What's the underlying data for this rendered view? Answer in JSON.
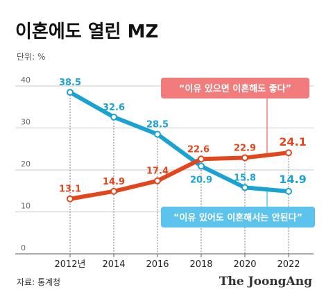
{
  "title": "이혼에도 열린 MZ",
  "unit_label": "단위: %",
  "source": "자료: 통계청",
  "logo": "The JoongAng",
  "colors": {
    "red": "#e2461c",
    "blue": "#1aa3d2",
    "callout_red": "#f27b7b",
    "callout_blue": "#5cc3ec"
  },
  "chart_data": {
    "type": "line",
    "categories": [
      "2012년",
      "2014",
      "2016",
      "2018",
      "2020",
      "2022"
    ],
    "ylim": [
      0,
      40
    ],
    "yticks": [
      0,
      10,
      20,
      30,
      40
    ],
    "grid": true,
    "series": [
      {
        "name": "“이유 있으면 이혼해도 좋다”",
        "color": "#e2461c",
        "values": [
          13.1,
          14.9,
          17.4,
          22.6,
          22.9,
          24.1
        ],
        "labels": [
          "13.1",
          "14.9",
          "17.4",
          "22.6",
          "22.9",
          "24.1"
        ]
      },
      {
        "name": "“이유 있어도 이혼해서는 안된다”",
        "color": "#1aa3d2",
        "values": [
          38.5,
          32.6,
          28.5,
          20.9,
          15.8,
          14.9
        ],
        "labels": [
          "38.5",
          "32.6",
          "28.5",
          "20.9",
          "15.8",
          "14.9"
        ]
      }
    ]
  }
}
